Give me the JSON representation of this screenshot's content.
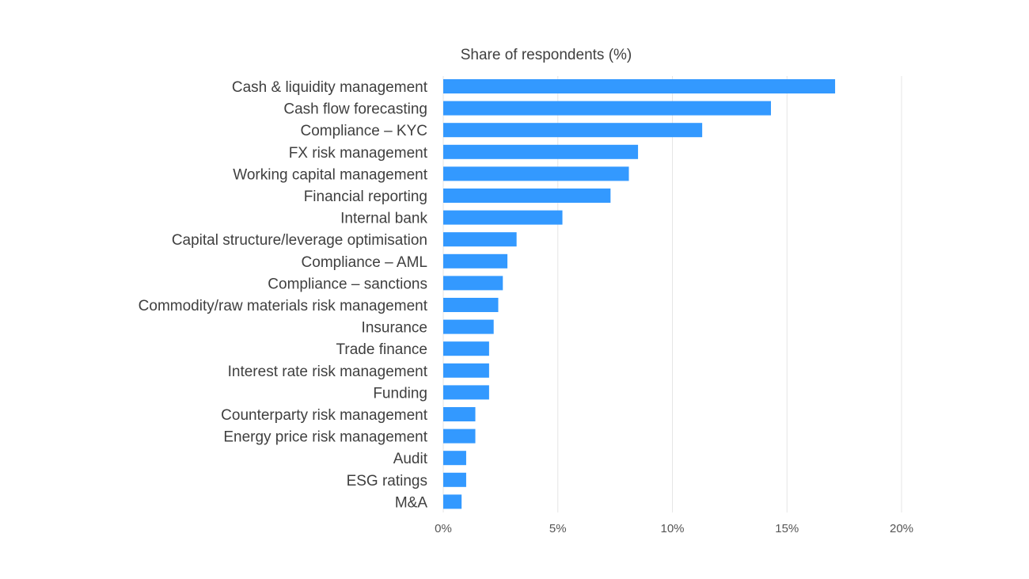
{
  "chart_data": {
    "type": "bar",
    "orientation": "horizontal",
    "title": "Share of respondents (%)",
    "categories": [
      "Cash & liquidity management",
      "Cash flow forecasting",
      "Compliance – KYC",
      "FX risk management",
      "Working capital management",
      "Financial reporting",
      "Internal bank",
      "Capital structure/leverage optimisation",
      "Compliance – AML",
      "Compliance – sanctions",
      "Commodity/raw materials risk management",
      "Insurance",
      "Trade finance",
      "Interest rate risk management",
      "Funding",
      "Counterparty risk management",
      "Energy price risk management",
      "Audit",
      "ESG ratings",
      "M&A"
    ],
    "values": [
      17.1,
      14.3,
      11.3,
      8.5,
      8.1,
      7.3,
      5.2,
      3.2,
      2.8,
      2.6,
      2.4,
      2.2,
      2.0,
      2.0,
      2.0,
      1.4,
      1.4,
      1.0,
      1.0,
      0.8
    ],
    "xlim": [
      0,
      20
    ],
    "xticks": [
      0,
      5,
      10,
      15,
      20
    ],
    "xtick_labels": [
      "0%",
      "5%",
      "10%",
      "15%",
      "20%"
    ],
    "grid": true,
    "bar_color": "#3399ff",
    "grid_color": "#e6e6e6"
  }
}
